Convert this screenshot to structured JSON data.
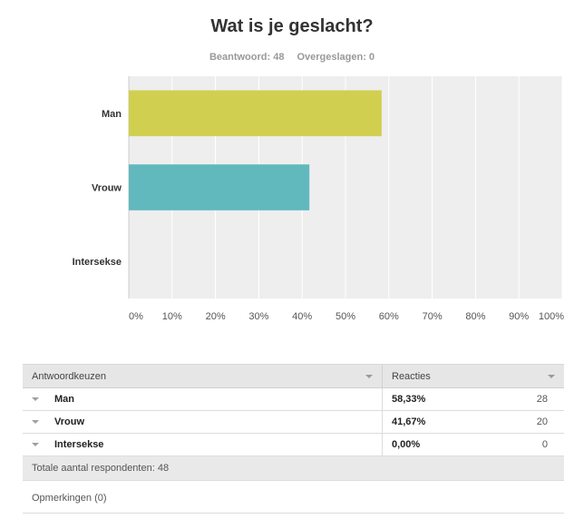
{
  "question": {
    "title": "Wat is je geslacht?",
    "answered_label": "Beantwoord: 48",
    "skipped_label": "Overgeslagen: 0"
  },
  "chart_data": {
    "type": "bar",
    "orientation": "horizontal",
    "categories": [
      "Man",
      "Vrouw",
      "Intersekse"
    ],
    "values": [
      58.33,
      41.67,
      0
    ],
    "unit": "%",
    "xlim": [
      0,
      100
    ],
    "xticks": [
      "0%",
      "10%",
      "20%",
      "30%",
      "40%",
      "50%",
      "60%",
      "70%",
      "80%",
      "90%",
      "100%"
    ],
    "colors": [
      "#d1cf50",
      "#62b9bd",
      "#f0a35e"
    ],
    "grid": true,
    "background": "#eeeeee"
  },
  "table": {
    "headers": {
      "choices": "Antwoordkeuzen",
      "responses": "Reacties"
    },
    "rows": [
      {
        "label": "Man",
        "percent": "58,33%",
        "count": "28"
      },
      {
        "label": "Vrouw",
        "percent": "41,67%",
        "count": "20"
      },
      {
        "label": "Intersekse",
        "percent": "0,00%",
        "count": "0"
      }
    ],
    "total": "Totale aantal respondenten: 48",
    "comments": "Opmerkingen  (0)"
  }
}
